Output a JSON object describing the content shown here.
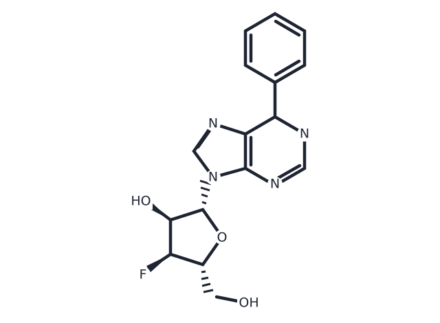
{
  "atoms": [
    {
      "label": "N"
    },
    {
      "label": "N"
    },
    {
      "label": "N"
    },
    {
      "label": "N"
    },
    {
      "label": "HO"
    },
    {
      "label": "O"
    },
    {
      "label": "F"
    },
    {
      "label": "OH"
    }
  ]
}
